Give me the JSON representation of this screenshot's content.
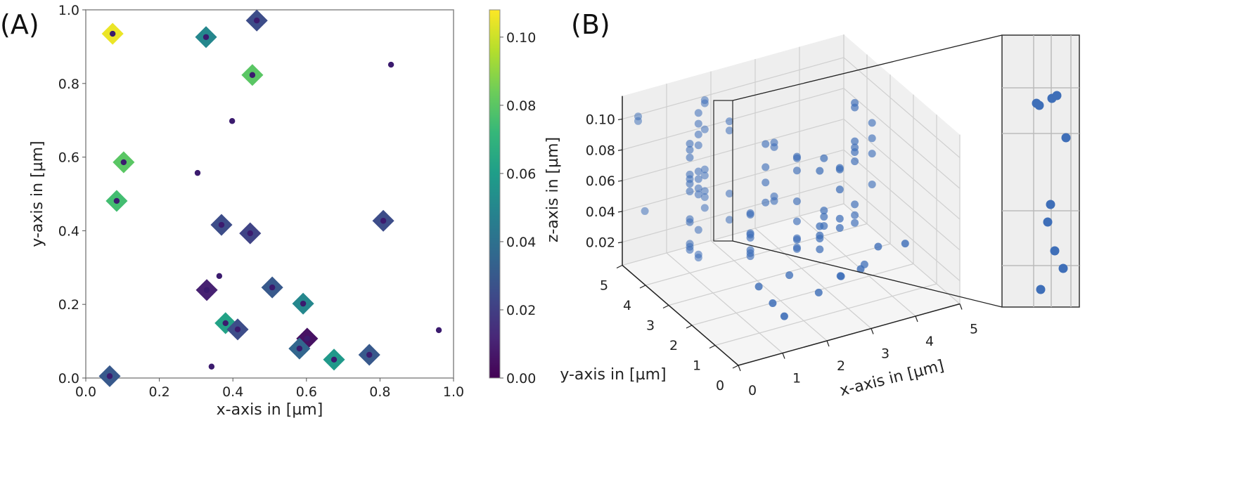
{
  "chart_data": [
    {
      "panel_label": "(A)",
      "type": "scatter",
      "xlabel": "x-axis in [µm]",
      "ylabel": "y-axis in [µm]",
      "xlim": [
        0,
        1.0
      ],
      "ylim": [
        0,
        1.0
      ],
      "xticks": [
        "0.0",
        "0.2",
        "0.4",
        "0.6",
        "0.8",
        "1.0"
      ],
      "yticks": [
        "0.0",
        "0.2",
        "0.4",
        "0.6",
        "0.8",
        "1.0"
      ],
      "colorbar": {
        "range": [
          0,
          0.108
        ],
        "ticks": [
          "0.00",
          "0.02",
          "0.04",
          "0.06",
          "0.08",
          "0.10"
        ],
        "colormap": "viridis"
      },
      "diamond_points": [
        {
          "x": 0.073,
          "y": 0.935,
          "c": 0.105
        },
        {
          "x": 0.327,
          "y": 0.926,
          "c": 0.05
        },
        {
          "x": 0.465,
          "y": 0.971,
          "c": 0.025
        },
        {
          "x": 0.453,
          "y": 0.823,
          "c": 0.08
        },
        {
          "x": 0.103,
          "y": 0.586,
          "c": 0.08
        },
        {
          "x": 0.084,
          "y": 0.481,
          "c": 0.075
        },
        {
          "x": 0.369,
          "y": 0.416,
          "c": 0.025
        },
        {
          "x": 0.447,
          "y": 0.393,
          "c": 0.022
        },
        {
          "x": 0.809,
          "y": 0.427,
          "c": 0.025
        },
        {
          "x": 0.329,
          "y": 0.239,
          "c": 0.01
        },
        {
          "x": 0.507,
          "y": 0.246,
          "c": 0.03
        },
        {
          "x": 0.591,
          "y": 0.202,
          "c": 0.05
        },
        {
          "x": 0.38,
          "y": 0.149,
          "c": 0.062
        },
        {
          "x": 0.413,
          "y": 0.132,
          "c": 0.025
        },
        {
          "x": 0.602,
          "y": 0.107,
          "c": 0.005
        },
        {
          "x": 0.581,
          "y": 0.08,
          "c": 0.035
        },
        {
          "x": 0.675,
          "y": 0.05,
          "c": 0.058
        },
        {
          "x": 0.771,
          "y": 0.063,
          "c": 0.03
        },
        {
          "x": 0.065,
          "y": 0.005,
          "c": 0.03
        }
      ],
      "dot_points": [
        {
          "x": 0.073,
          "y": 0.935
        },
        {
          "x": 0.327,
          "y": 0.926
        },
        {
          "x": 0.465,
          "y": 0.971
        },
        {
          "x": 0.453,
          "y": 0.823
        },
        {
          "x": 0.103,
          "y": 0.586
        },
        {
          "x": 0.084,
          "y": 0.481
        },
        {
          "x": 0.369,
          "y": 0.416
        },
        {
          "x": 0.447,
          "y": 0.393
        },
        {
          "x": 0.809,
          "y": 0.427
        },
        {
          "x": 0.329,
          "y": 0.239
        },
        {
          "x": 0.507,
          "y": 0.246
        },
        {
          "x": 0.591,
          "y": 0.202
        },
        {
          "x": 0.38,
          "y": 0.149
        },
        {
          "x": 0.413,
          "y": 0.132
        },
        {
          "x": 0.602,
          "y": 0.107
        },
        {
          "x": 0.581,
          "y": 0.08
        },
        {
          "x": 0.675,
          "y": 0.05
        },
        {
          "x": 0.771,
          "y": 0.063
        },
        {
          "x": 0.065,
          "y": 0.005
        },
        {
          "x": 0.83,
          "y": 0.851
        },
        {
          "x": 0.398,
          "y": 0.698
        },
        {
          "x": 0.304,
          "y": 0.557
        },
        {
          "x": 0.363,
          "y": 0.277
        },
        {
          "x": 0.342,
          "y": 0.031
        },
        {
          "x": 0.96,
          "y": 0.13
        }
      ]
    },
    {
      "panel_label": "(B)",
      "type": "scatter3d",
      "xlabel": "x-axis in [µm]",
      "ylabel": "y-axis in [µm]",
      "zlabel": "z-axis in [µm]",
      "xticks": [
        "0",
        "1",
        "2",
        "3",
        "4",
        "5"
      ],
      "yticks": [
        "0",
        "1",
        "2",
        "3",
        "4",
        "5"
      ],
      "zticks": [
        "0.02",
        "0.04",
        "0.06",
        "0.08",
        "0.10"
      ],
      "xlim": [
        0,
        5
      ],
      "ylim": [
        0,
        5
      ],
      "zlim": [
        0.005,
        0.115
      ],
      "points": [
        [
          0.2,
          4.7,
          0.104
        ],
        [
          0.2,
          4.7,
          0.101
        ],
        [
          0.3,
          4.6,
          0.043
        ],
        [
          1.0,
          4.0,
          0.089
        ],
        [
          1.0,
          4.0,
          0.085
        ],
        [
          1.0,
          4.0,
          0.08
        ],
        [
          1.0,
          4.0,
          0.069
        ],
        [
          1.0,
          4.0,
          0.066
        ],
        [
          1.0,
          4.0,
          0.063
        ],
        [
          1.0,
          4.0,
          0.058
        ],
        [
          1.0,
          4.0,
          0.04
        ],
        [
          1.0,
          4.0,
          0.038
        ],
        [
          1.0,
          4.0,
          0.024
        ],
        [
          1.0,
          4.0,
          0.022
        ],
        [
          1.0,
          4.0,
          0.02
        ],
        [
          1.3,
          4.2,
          0.104
        ],
        [
          1.3,
          4.2,
          0.097
        ],
        [
          1.3,
          4.2,
          0.09
        ],
        [
          1.3,
          4.2,
          0.083
        ],
        [
          1.3,
          4.2,
          0.066
        ],
        [
          1.3,
          4.2,
          0.061
        ],
        [
          1.3,
          4.2,
          0.055
        ],
        [
          1.3,
          4.2,
          0.051
        ],
        [
          1.3,
          4.2,
          0.028
        ],
        [
          1.3,
          4.2,
          0.012
        ],
        [
          1.3,
          4.2,
          0.01
        ],
        [
          1.6,
          4.5,
          0.106
        ],
        [
          1.6,
          4.5,
          0.104
        ],
        [
          1.6,
          4.5,
          0.087
        ],
        [
          1.6,
          4.5,
          0.061
        ],
        [
          1.6,
          4.5,
          0.057
        ],
        [
          1.6,
          4.5,
          0.047
        ],
        [
          1.6,
          4.5,
          0.043
        ],
        [
          1.6,
          4.5,
          0.036
        ],
        [
          2.0,
          4.2,
          0.093
        ],
        [
          2.0,
          4.2,
          0.087
        ],
        [
          2.0,
          4.2,
          0.046
        ],
        [
          2.0,
          4.2,
          0.029
        ],
        [
          2.0,
          3.3,
          0.045
        ],
        [
          2.0,
          3.3,
          0.044
        ],
        [
          2.0,
          3.3,
          0.032
        ],
        [
          2.0,
          3.3,
          0.031
        ],
        [
          2.0,
          3.3,
          0.029
        ],
        [
          2.0,
          3.3,
          0.021
        ],
        [
          2.0,
          3.3,
          0.019
        ],
        [
          2.0,
          3.3,
          0.017
        ],
        [
          1.3,
          1.6,
          0.025
        ],
        [
          1.3,
          1.0,
          0.022
        ],
        [
          1.3,
          0.5,
          0.02
        ],
        [
          2.5,
          3.6,
          0.082
        ],
        [
          2.5,
          3.6,
          0.067
        ],
        [
          2.5,
          3.6,
          0.057
        ],
        [
          2.5,
          3.6,
          0.044
        ],
        [
          2.8,
          3.8,
          0.078
        ],
        [
          2.8,
          3.8,
          0.075
        ],
        [
          2.8,
          3.8,
          0.043
        ],
        [
          2.8,
          3.8,
          0.04
        ],
        [
          3.0,
          3.2,
          0.075
        ],
        [
          3.0,
          3.2,
          0.074
        ],
        [
          3.0,
          3.2,
          0.066
        ],
        [
          3.0,
          3.2,
          0.046
        ],
        [
          3.0,
          3.2,
          0.033
        ],
        [
          3.0,
          3.2,
          0.022
        ],
        [
          3.0,
          3.2,
          0.021
        ],
        [
          3.0,
          3.2,
          0.016
        ],
        [
          3.0,
          3.2,
          0.015
        ],
        [
          3.2,
          2.6,
          0.072
        ],
        [
          3.2,
          2.6,
          0.036
        ],
        [
          3.2,
          2.6,
          0.03
        ],
        [
          3.2,
          2.6,
          0.028
        ],
        [
          3.2,
          2.6,
          0.021
        ],
        [
          3.4,
          2.8,
          0.076
        ],
        [
          3.4,
          2.8,
          0.042
        ],
        [
          3.4,
          2.8,
          0.038
        ],
        [
          3.4,
          2.8,
          0.032
        ],
        [
          3.6,
          2.5,
          0.072
        ],
        [
          3.6,
          2.5,
          0.071
        ],
        [
          3.6,
          2.5,
          0.058
        ],
        [
          3.6,
          2.5,
          0.039
        ],
        [
          3.6,
          2.5,
          0.033
        ],
        [
          4.2,
          3.0,
          0.103
        ],
        [
          4.2,
          3.0,
          0.1
        ],
        [
          4.2,
          3.0,
          0.078
        ],
        [
          4.2,
          3.0,
          0.074
        ],
        [
          4.2,
          3.0,
          0.071
        ],
        [
          4.2,
          3.0,
          0.065
        ],
        [
          4.2,
          3.0,
          0.037
        ],
        [
          4.2,
          3.0,
          0.03
        ],
        [
          4.2,
          3.0,
          0.025
        ],
        [
          4.8,
          3.4,
          0.08
        ],
        [
          4.8,
          3.4,
          0.07
        ],
        [
          4.8,
          3.4,
          0.06
        ],
        [
          4.8,
          3.4,
          0.04
        ],
        [
          2.6,
          1.5,
          0.012
        ],
        [
          3.0,
          1.3,
          0.022
        ],
        [
          3.6,
          1.6,
          0.018
        ],
        [
          4.1,
          1.8,
          0.026
        ],
        [
          4.5,
          1.4,
          0.03
        ],
        [
          2.2,
          2.0,
          0.02
        ],
        [
          3.3,
          1.9,
          0.012
        ],
        [
          4.0,
          2.2,
          0.01
        ]
      ],
      "inset": {
        "description_points_z": [
          0.104,
          0.102,
          0.101,
          0.088,
          0.061,
          0.057,
          0.047,
          0.043,
          0.036
        ]
      }
    }
  ]
}
